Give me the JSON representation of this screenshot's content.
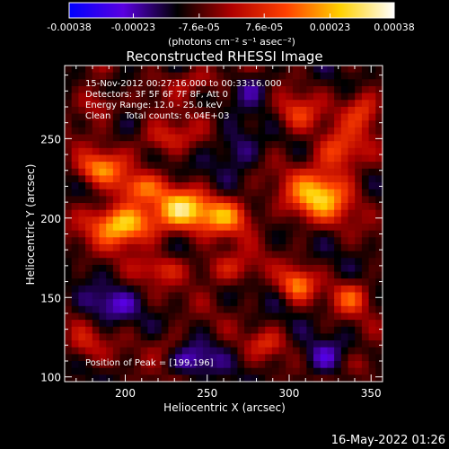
{
  "colorbar": {
    "tick_labels": [
      "-0.00038",
      "-0.00023",
      "-7.6e-05",
      "7.6e-05",
      "0.00023",
      "0.00038"
    ],
    "tick_values": [
      -0.00038,
      -0.00023,
      -7.6e-05,
      7.6e-05,
      0.00023,
      0.00038
    ],
    "unit_label": "(photons cm⁻² s⁻¹ asec⁻²)",
    "colors": [
      "#0000ff",
      "#5a00e0",
      "#000000",
      "#b00000",
      "#ff4000",
      "#ffd000",
      "#ffffff"
    ]
  },
  "chart_data": {
    "type": "heatmap",
    "title": "Reconstructed RHESSI Image",
    "xlabel": "Heliocentric X (arcsec)",
    "ylabel": "Heliocentric Y (arcsec)",
    "xlim": [
      163,
      357
    ],
    "ylim": [
      97,
      296
    ],
    "x_ticks": [
      200,
      250,
      300,
      350
    ],
    "y_ticks": [
      100,
      150,
      200,
      250
    ],
    "x_tick_labels": [
      "200",
      "250",
      "300",
      "350"
    ],
    "y_tick_labels": [
      "100",
      "150",
      "200",
      "250"
    ],
    "annotations": [
      "15-Nov-2012 00:27:16.000 to 00:33:16.000",
      "Detectors: 3F 5F 6F 7F 8F, Att 0",
      "Energy Range: 12.0 - 25.0 keV",
      "Clean     Total counts: 6.04E+03"
    ],
    "peak_label": "Position of Peak = [199,196]",
    "peak": [
      199,
      196
    ],
    "sources": [
      {
        "x": 199,
        "y": 196,
        "amp": 0.00038,
        "sx": 14,
        "sy": 9
      },
      {
        "x": 235,
        "y": 206,
        "amp": 0.00034,
        "sx": 12,
        "sy": 9
      },
      {
        "x": 262,
        "y": 201,
        "amp": 0.00026,
        "sx": 11,
        "sy": 8
      },
      {
        "x": 185,
        "y": 231,
        "amp": 0.00027,
        "sx": 10,
        "sy": 7
      },
      {
        "x": 318,
        "y": 214,
        "amp": 0.00033,
        "sx": 14,
        "sy": 11
      },
      {
        "x": 330,
        "y": 242,
        "amp": 0.00021,
        "sx": 10,
        "sy": 9
      },
      {
        "x": 305,
        "y": 158,
        "amp": 0.00025,
        "sx": 7,
        "sy": 7
      },
      {
        "x": 338,
        "y": 150,
        "amp": 0.00019,
        "sx": 8,
        "sy": 7
      },
      {
        "x": 305,
        "y": 265,
        "amp": 0.00017,
        "sx": 9,
        "sy": 8
      },
      {
        "x": 345,
        "y": 268,
        "amp": 0.00018,
        "sx": 8,
        "sy": 9
      },
      {
        "x": 225,
        "y": 250,
        "amp": 0.00016,
        "sx": 12,
        "sy": 7
      },
      {
        "x": 183,
        "y": 272,
        "amp": 0.00014,
        "sx": 9,
        "sy": 8
      },
      {
        "x": 262,
        "y": 168,
        "amp": 0.00014,
        "sx": 14,
        "sy": 7
      },
      {
        "x": 222,
        "y": 168,
        "amp": 0.00013,
        "sx": 10,
        "sy": 6
      },
      {
        "x": 243,
        "y": 286,
        "amp": 0.00012,
        "sx": 14,
        "sy": 6
      },
      {
        "x": 175,
        "y": 120,
        "amp": 0.00011,
        "sx": 8,
        "sy": 8
      },
      {
        "x": 228,
        "y": 119,
        "amp": 0.00011,
        "sx": 9,
        "sy": 7
      },
      {
        "x": 286,
        "y": 121,
        "amp": 0.00012,
        "sx": 8,
        "sy": 6
      },
      {
        "x": 345,
        "y": 108,
        "amp": 0.00011,
        "sx": 8,
        "sy": 6
      },
      {
        "x": 208,
        "y": 219,
        "amp": 0.0002,
        "sx": 10,
        "sy": 6
      },
      {
        "x": 240,
        "y": 112,
        "amp": -0.00014,
        "sx": 12,
        "sy": 8
      },
      {
        "x": 268,
        "y": 243,
        "amp": -0.00013,
        "sx": 10,
        "sy": 10
      },
      {
        "x": 320,
        "y": 111,
        "amp": -0.00012,
        "sx": 10,
        "sy": 8
      },
      {
        "x": 190,
        "y": 145,
        "amp": -0.00012,
        "sx": 12,
        "sy": 8
      },
      {
        "x": 278,
        "y": 283,
        "amp": -0.00011,
        "sx": 9,
        "sy": 7
      },
      {
        "x": 197,
        "y": 283,
        "amp": -9e-05,
        "sx": 8,
        "sy": 7
      }
    ]
  },
  "footer": {
    "timestamp": "16-May-2022 01:26"
  }
}
